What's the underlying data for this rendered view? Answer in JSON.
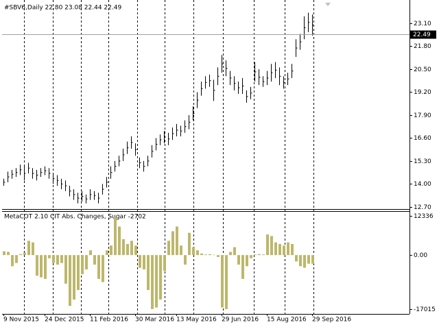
{
  "chart_data": [
    {
      "type": "range_bar",
      "title": "#SBV6,Daily  22.80 23.08 22.44 22.49",
      "color": "#000000",
      "categories": [
        "9 Nov 2015",
        null,
        null,
        null,
        null,
        null,
        null,
        null,
        null,
        null,
        "24 Dec 2015",
        null,
        null,
        null,
        null,
        null,
        null,
        null,
        null,
        null,
        null,
        "11 Feb 2016",
        null,
        null,
        null,
        null,
        null,
        null,
        null,
        null,
        null,
        null,
        "30 Mar 2016",
        null,
        null,
        null,
        null,
        null,
        null,
        null,
        null,
        null,
        "13 May 2016",
        null,
        null,
        null,
        null,
        null,
        null,
        null,
        null,
        null,
        null,
        "29 Jun 2016",
        null,
        null,
        null,
        null,
        null,
        null,
        null,
        null,
        null,
        null,
        "15 Aug 2016",
        null,
        null,
        null,
        null,
        null,
        null,
        null,
        null,
        null,
        null,
        "29 Sep 2016"
      ],
      "high": [
        14.3,
        14.7,
        14.8,
        14.9,
        15.1,
        15.0,
        15.2,
        14.9,
        14.8,
        14.9,
        15.0,
        14.9,
        14.6,
        14.5,
        14.3,
        14.2,
        13.9,
        13.7,
        13.5,
        13.6,
        13.4,
        13.7,
        13.6,
        13.5,
        14.0,
        14.4,
        15.0,
        15.3,
        15.6,
        16.0,
        16.4,
        16.7,
        16.3,
        15.5,
        15.3,
        15.6,
        16.2,
        16.6,
        16.8,
        17.0,
        16.9,
        17.2,
        17.4,
        17.3,
        17.6,
        17.9,
        18.4,
        19.2,
        19.8,
        20.1,
        20.2,
        19.9,
        20.6,
        21.3,
        21.0,
        20.4,
        20.1,
        19.8,
        20.0,
        19.3,
        19.5,
        20.9,
        20.5,
        20.1,
        20.4,
        20.8,
        20.9,
        20.6,
        20.1,
        20.3,
        20.8,
        22.2,
        22.5,
        23.5,
        23.7,
        23.6
      ],
      "low": [
        13.9,
        14.1,
        14.3,
        14.4,
        14.5,
        14.2,
        14.6,
        14.3,
        14.2,
        14.4,
        14.5,
        14.3,
        14.0,
        13.9,
        13.7,
        13.6,
        13.3,
        13.1,
        12.9,
        13.0,
        12.9,
        13.1,
        13.1,
        12.9,
        13.4,
        13.8,
        14.3,
        14.7,
        15.0,
        15.3,
        15.7,
        16.0,
        15.6,
        14.9,
        14.7,
        15.0,
        15.5,
        15.9,
        16.2,
        16.3,
        16.2,
        16.5,
        16.7,
        16.7,
        16.9,
        17.1,
        17.6,
        18.3,
        19.0,
        19.4,
        19.5,
        18.7,
        19.6,
        20.3,
        20.1,
        19.6,
        19.3,
        19.1,
        19.1,
        18.6,
        18.8,
        19.8,
        19.6,
        19.5,
        19.6,
        19.8,
        20.0,
        19.6,
        19.4,
        19.6,
        20.0,
        21.2,
        21.6,
        22.2,
        22.6,
        22.4
      ],
      "last_price": 22.49,
      "ylim": [
        12.58,
        24.42
      ],
      "yticks": [
        {
          "value": 23.1,
          "label": "23.10"
        },
        {
          "value": 21.8,
          "label": "21.80"
        },
        {
          "value": 20.5,
          "label": "20.50"
        },
        {
          "value": 19.2,
          "label": "19.20"
        },
        {
          "value": 17.9,
          "label": "17.90"
        },
        {
          "value": 16.6,
          "label": "16.60"
        },
        {
          "value": 15.3,
          "label": "15.30"
        },
        {
          "value": 14.0,
          "label": "14.00"
        },
        {
          "value": 12.7,
          "label": "12.70"
        }
      ]
    },
    {
      "type": "bar",
      "title": "MetaCOT 2.10 CIT Abs. Changes, Sugar  -2702",
      "color": "#bdb76b",
      "values": [
        1200,
        1000,
        -3500,
        -2500,
        300,
        800,
        4500,
        4000,
        -6500,
        -7000,
        -7500,
        -1000,
        -2500,
        -3000,
        -2500,
        -9000,
        -16000,
        -14000,
        -11000,
        -6000,
        -4500,
        1500,
        -3000,
        -7500,
        -8500,
        1500,
        3000,
        12000,
        9000,
        5000,
        3500,
        4500,
        3000,
        -4000,
        -4500,
        -11000,
        -17000,
        -16500,
        -14000,
        -5000,
        4500,
        7500,
        9000,
        3000,
        -3000,
        7000,
        2500,
        1500,
        500,
        200,
        300,
        100,
        -600,
        -16500,
        -17000,
        1000,
        2500,
        -3000,
        -7500,
        -3500,
        -1000,
        200,
        300,
        200,
        6500,
        6000,
        4000,
        3500,
        3000,
        4000,
        3500,
        -2000,
        -3500,
        -4000,
        -2702,
        -2702
      ],
      "ylim": [
        -18526,
        13847
      ],
      "yticks": [
        12336,
        {
          "value": 0,
          "label": "0.00"
        },
        -17015
      ]
    }
  ]
}
